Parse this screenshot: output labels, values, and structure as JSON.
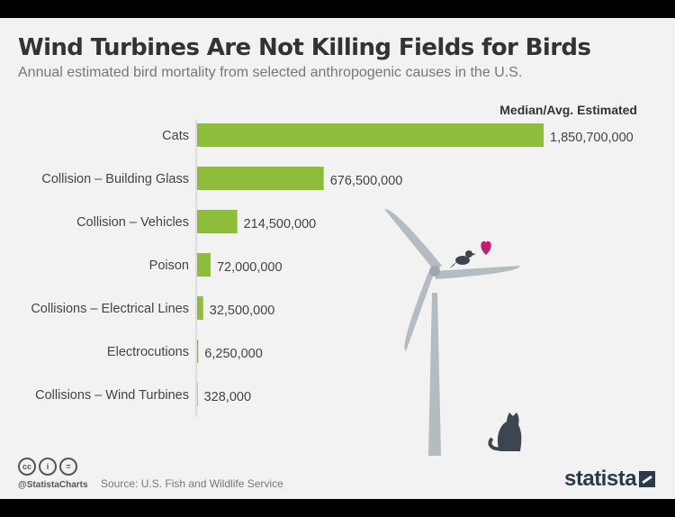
{
  "title": "Wind Turbines Are Not Killing Fields for Birds",
  "subtitle": "Annual estimated bird mortality from selected anthropogenic causes in the U.S.",
  "source": "Source: U.S. Fish and Wildlife Service",
  "handle": "@StatistaCharts",
  "brand": "statista",
  "license_icons": [
    "cc",
    "by",
    "nd"
  ],
  "colors": {
    "bar": "#8dbd3b",
    "title": "#333333",
    "text": "#555555",
    "turbine": "#b5bcc1",
    "heart": "#c41e6a",
    "animal": "#3d4550"
  },
  "illustration": {
    "turbine": "wind-turbine-icon",
    "bird": "bird-icon",
    "heart": "heart-icon",
    "cat": "cat-icon"
  },
  "chart_data": {
    "type": "bar",
    "orientation": "horizontal",
    "series_label": "Median/Avg. Estimated",
    "categories": [
      "Cats",
      "Collision – Building Glass",
      "Collision – Vehicles",
      "Poison",
      "Collisions – Electrical Lines",
      "Electrocutions",
      "Collisions – Wind Turbines"
    ],
    "values": [
      1850700000,
      676500000,
      214500000,
      72000000,
      32500000,
      6250000,
      328000
    ],
    "value_labels": [
      "1,850,700,000",
      "676,500,000",
      "214,500,000",
      "72,000,000",
      "32,500,000",
      "6,250,000",
      "328,000"
    ],
    "xlim": [
      0,
      1850700000
    ],
    "grid": false,
    "legend": "none"
  }
}
